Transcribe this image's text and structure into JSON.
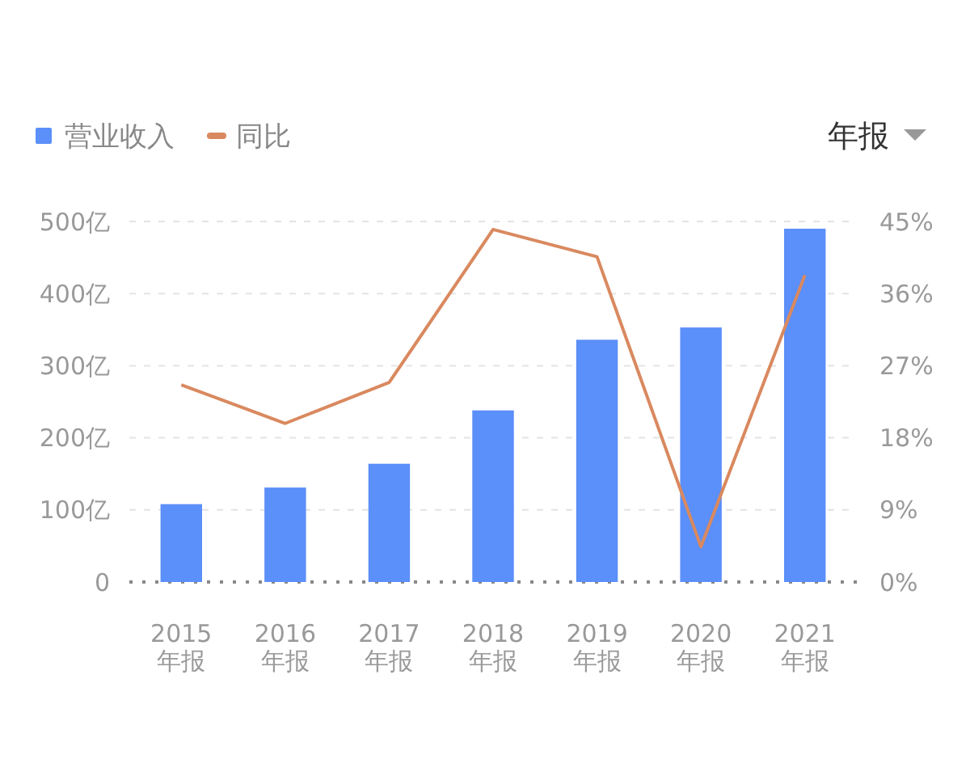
{
  "chart_data": {
    "type": "bar",
    "categories": [
      "2015\n年报",
      "2016\n年报",
      "2017\n年报",
      "2018\n年报",
      "2019\n年报",
      "2020\n年报",
      "2021\n年报"
    ],
    "series": [
      {
        "name": "营业收入",
        "color": "#5b8ff9",
        "values": [
          108,
          131,
          164,
          238,
          336,
          353,
          490
        ]
      },
      {
        "name": "同比",
        "type": "line",
        "axis": "y2",
        "color": "#d9895f",
        "marker": "none",
        "values": [
          24.6,
          19.8,
          24.9,
          44.0,
          40.6,
          4.4,
          38.3
        ]
      }
    ],
    "ylim": [
      0,
      500
    ],
    "yticks": [
      {
        "value": 0,
        "label": "0"
      },
      {
        "value": 100,
        "label": "100亿"
      },
      {
        "value": 200,
        "label": "200亿"
      },
      {
        "value": 300,
        "label": "300亿"
      },
      {
        "value": 400,
        "label": "400亿"
      },
      {
        "value": 500,
        "label": "500亿"
      }
    ],
    "y2lim": [
      0,
      45
    ],
    "y2ticks": [
      {
        "value": 0,
        "label": "0%"
      },
      {
        "value": 9,
        "label": "9%"
      },
      {
        "value": 18,
        "label": "18%"
      },
      {
        "value": 27,
        "label": "27%"
      },
      {
        "value": 36,
        "label": "36%"
      },
      {
        "value": 45,
        "label": "45%"
      }
    ],
    "grid": "y",
    "legend": "top left",
    "annotations": [
      "年报"
    ]
  }
}
